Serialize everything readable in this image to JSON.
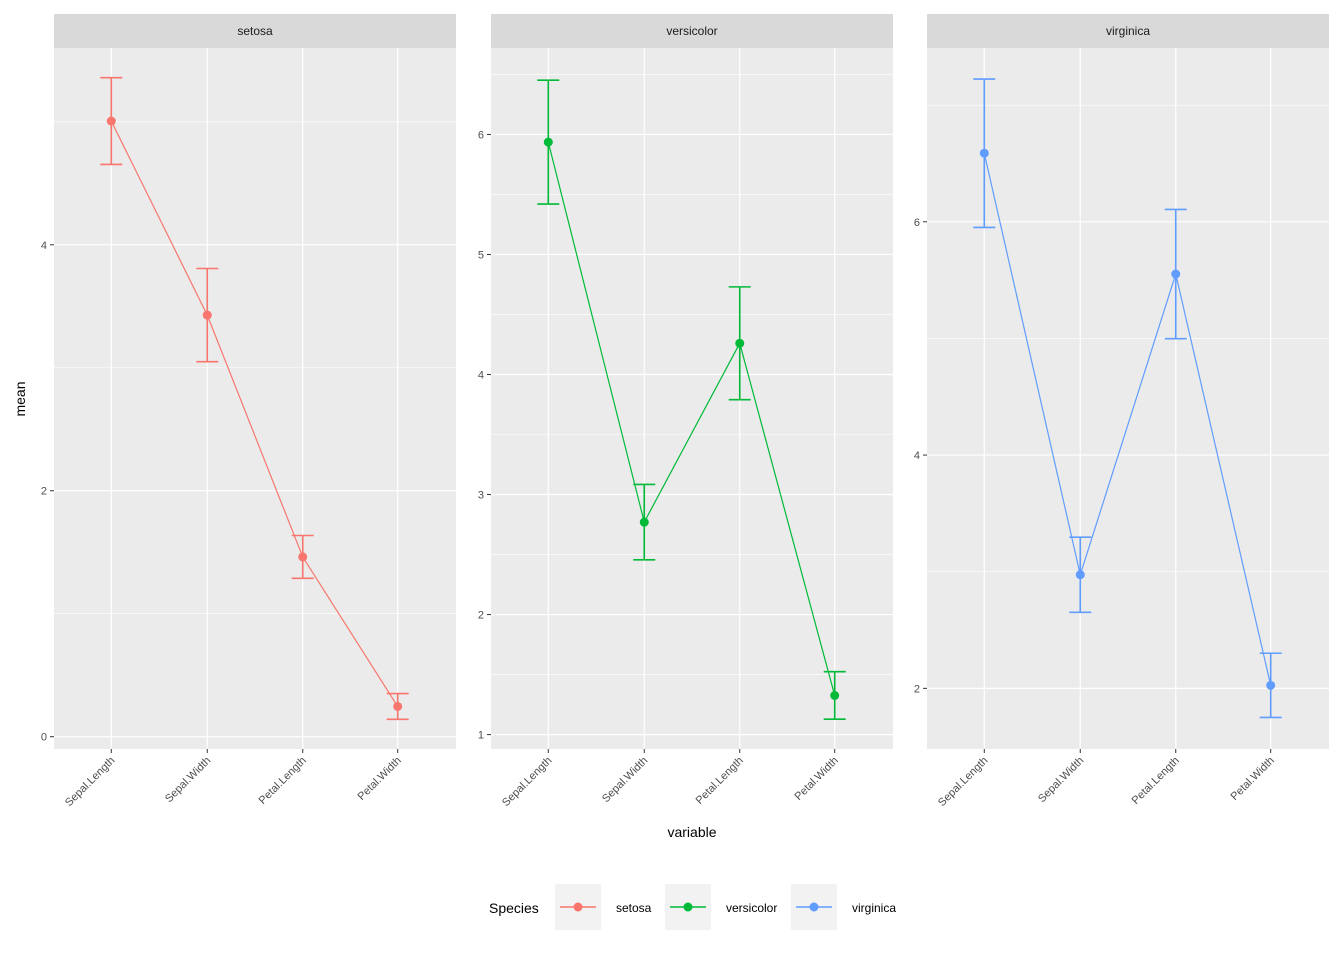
{
  "chart_data": {
    "type": "line",
    "facet_by": "Species",
    "xlabel": "variable",
    "ylabel": "mean",
    "categories": [
      "Sepal.Length",
      "Sepal.Width",
      "Petal.Length",
      "Petal.Width"
    ],
    "legend": {
      "title": "Species",
      "position": "bottom",
      "entries": [
        {
          "label": "setosa",
          "color": "#F8766D"
        },
        {
          "label": "versicolor",
          "color": "#00BA38"
        },
        {
          "label": "virginica",
          "color": "#619CFF"
        }
      ]
    },
    "panels": [
      {
        "strip": "setosa",
        "color": "#F8766D",
        "ylim": [
          -0.1,
          5.6
        ],
        "yticks": [
          0,
          2,
          4
        ],
        "ytick_labels": [
          "0",
          "2",
          "4"
        ],
        "y_minor_breaks": [
          1,
          3,
          5
        ],
        "mean": [
          5.006,
          3.428,
          1.462,
          0.246
        ],
        "ymin": [
          4.653,
          3.049,
          1.288,
          0.141
        ],
        "ymax": [
          5.359,
          3.807,
          1.636,
          0.351
        ]
      },
      {
        "strip": "versicolor",
        "color": "#00BA38",
        "ylim": [
          0.88,
          6.72
        ],
        "yticks": [
          1,
          2,
          3,
          4,
          5,
          6
        ],
        "ytick_labels": [
          "1",
          "2",
          "3",
          "4",
          "5",
          "6"
        ],
        "y_minor_breaks": [
          1.5,
          2.5,
          3.5,
          4.5,
          5.5,
          6.5
        ],
        "mean": [
          5.936,
          2.77,
          4.26,
          1.326
        ],
        "ymin": [
          5.42,
          2.456,
          3.79,
          1.128
        ],
        "ymax": [
          6.452,
          3.084,
          4.73,
          1.524
        ]
      },
      {
        "strip": "virginica",
        "color": "#619CFF",
        "ylim": [
          1.48,
          7.49
        ],
        "yticks": [
          2,
          4,
          6
        ],
        "ytick_labels": [
          "2",
          "4",
          "6"
        ],
        "y_minor_breaks": [
          3,
          5,
          7
        ],
        "mean": [
          6.588,
          2.974,
          5.552,
          2.026
        ],
        "ymin": [
          5.952,
          2.652,
          4.998,
          1.751
        ],
        "ymax": [
          7.224,
          3.296,
          6.106,
          2.301
        ]
      }
    ],
    "grid": true
  }
}
